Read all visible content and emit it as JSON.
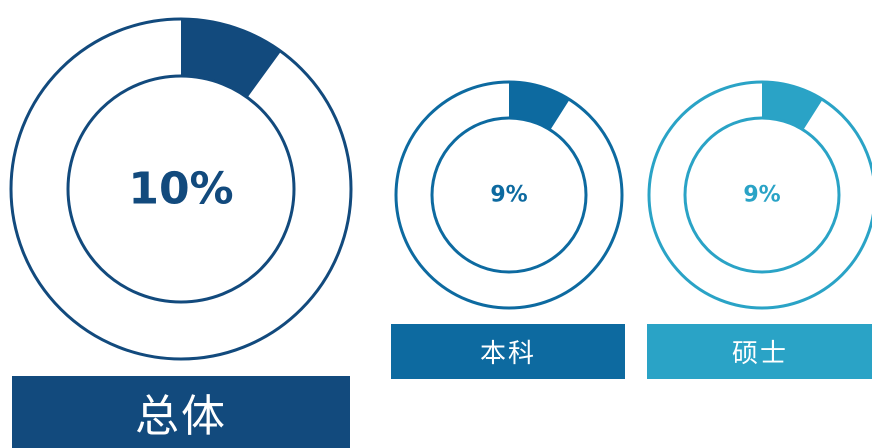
{
  "chart_data": [
    {
      "type": "pie",
      "style": "donut",
      "name": "总体",
      "value_label": "10%",
      "value": 10,
      "max": 100,
      "color": "#124a7d"
    },
    {
      "type": "pie",
      "style": "donut",
      "name": "本科",
      "value_label": "9%",
      "value": 9,
      "max": 100,
      "color": "#0d6aa0"
    },
    {
      "type": "pie",
      "style": "donut",
      "name": "硕士",
      "value_label": "9%",
      "value": 9,
      "max": 100,
      "color": "#2aa3c6"
    }
  ]
}
